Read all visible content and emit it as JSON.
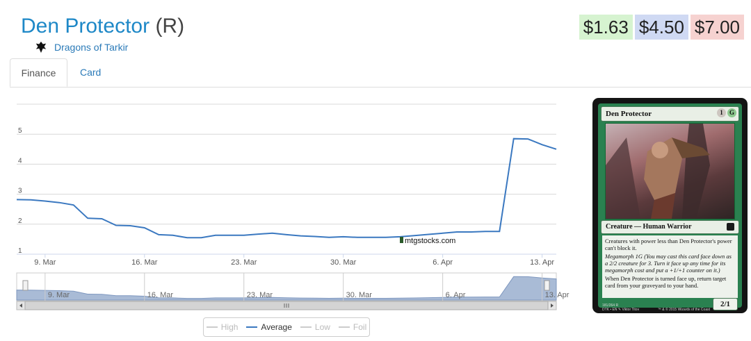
{
  "header": {
    "card_name": "Den Protector",
    "rarity": "(R)",
    "set_name": "Dragons of Tarkir",
    "set_icon": "dragons-of-tarkir-set-icon"
  },
  "prices": {
    "low": "$1.63",
    "average": "$4.50",
    "high": "$7.00",
    "colors": {
      "low": "#d6f3d0",
      "average": "#cfd9f3",
      "high": "#f6d2d0"
    }
  },
  "tabs": [
    {
      "label": "Finance",
      "active": true
    },
    {
      "label": "Card",
      "active": false
    }
  ],
  "watermark": "mtgstocks.com",
  "chart_data": {
    "type": "line",
    "y_ticks": [
      "1",
      "2",
      "3",
      "4",
      "5"
    ],
    "ylim": [
      1,
      6
    ],
    "x_ticks": [
      "9. Mar",
      "16. Mar",
      "23. Mar",
      "30. Mar",
      "6. Apr",
      "13. Apr"
    ],
    "navigator_ticks": [
      "9. Mar",
      "16. Mar",
      "23. Mar",
      "30. Mar",
      "6. Apr",
      "13. Apr"
    ],
    "series": [
      {
        "name": "Average",
        "color": "#3a78c0",
        "points": [
          [
            "2015-03-07",
            2.82
          ],
          [
            "2015-03-08",
            2.81
          ],
          [
            "2015-03-09",
            2.77
          ],
          [
            "2015-03-10",
            2.72
          ],
          [
            "2015-03-11",
            2.64
          ],
          [
            "2015-03-12",
            2.2
          ],
          [
            "2015-03-13",
            2.18
          ],
          [
            "2015-03-14",
            1.96
          ],
          [
            "2015-03-15",
            1.95
          ],
          [
            "2015-03-16",
            1.88
          ],
          [
            "2015-03-17",
            1.65
          ],
          [
            "2015-03-18",
            1.63
          ],
          [
            "2015-03-19",
            1.55
          ],
          [
            "2015-03-20",
            1.55
          ],
          [
            "2015-03-21",
            1.63
          ],
          [
            "2015-03-22",
            1.63
          ],
          [
            "2015-03-23",
            1.63
          ],
          [
            "2015-03-24",
            1.67
          ],
          [
            "2015-03-25",
            1.7
          ],
          [
            "2015-03-26",
            1.65
          ],
          [
            "2015-03-27",
            1.61
          ],
          [
            "2015-03-28",
            1.59
          ],
          [
            "2015-03-29",
            1.56
          ],
          [
            "2015-03-30",
            1.58
          ],
          [
            "2015-03-31",
            1.56
          ],
          [
            "2015-04-01",
            1.56
          ],
          [
            "2015-04-02",
            1.56
          ],
          [
            "2015-04-03",
            1.58
          ],
          [
            "2015-04-04",
            1.62
          ],
          [
            "2015-04-05",
            1.66
          ],
          [
            "2015-04-06",
            1.7
          ],
          [
            "2015-04-07",
            1.74
          ],
          [
            "2015-04-08",
            1.74
          ],
          [
            "2015-04-09",
            1.76
          ],
          [
            "2015-04-10",
            1.76
          ],
          [
            "2015-04-11",
            4.85
          ],
          [
            "2015-04-12",
            4.84
          ],
          [
            "2015-04-13",
            4.65
          ],
          [
            "2015-04-14",
            4.5
          ]
        ]
      }
    ],
    "legend": [
      {
        "name": "High",
        "on": false
      },
      {
        "name": "Average",
        "on": true
      },
      {
        "name": "Low",
        "on": false
      },
      {
        "name": "Foil",
        "on": false
      }
    ],
    "grid": true
  },
  "card_image": {
    "name": "Den Protector",
    "mana_cost": [
      "1",
      "G"
    ],
    "type_line": "Creature — Human Warrior",
    "rules_text": [
      "Creatures with power less than Den Protector's power can't block it.",
      "Megamorph 1G (You may cast this card face down as a 2/2 creature for 3. Turn it face up any time for its megamorph cost and put a +1/+1 counter on it.)",
      "When Den Protector is turned face up, return target card from your graveyard to your hand."
    ],
    "power_toughness": "2/1",
    "collector_info": "181/264 R",
    "set_line": "DTK • EN ✎ Viktor Titov",
    "copyright": "™ & © 2015 Wizards of the Coast"
  }
}
